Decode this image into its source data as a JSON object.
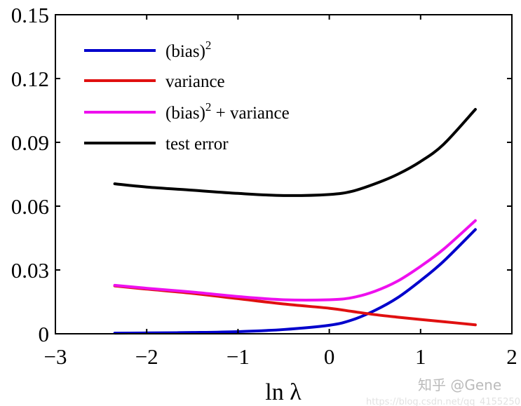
{
  "chart_data": {
    "type": "line",
    "title": "",
    "xlabel": "ln λ",
    "ylabel": "",
    "xlim": [
      -3,
      2
    ],
    "ylim": [
      0,
      0.15
    ],
    "xticks": [
      "−3",
      "−2",
      "−1",
      "0",
      "1",
      "2"
    ],
    "xtick_values": [
      -3,
      -2,
      -1,
      0,
      1,
      2
    ],
    "yticks": [
      "0",
      "0.03",
      "0.06",
      "0.09",
      "0.12",
      "0.15"
    ],
    "ytick_values": [
      0,
      0.03,
      0.06,
      0.09,
      0.12,
      0.15
    ],
    "grid": false,
    "legend_position": "top-left",
    "x": [
      -2.35,
      -2,
      -1.5,
      -1,
      -0.5,
      0,
      0.25,
      0.5,
      0.75,
      1,
      1.25,
      1.6
    ],
    "series": [
      {
        "name": "(bias)",
        "name_sup": "2",
        "color": "#0000cc",
        "values": [
          0.0003,
          0.0004,
          0.0006,
          0.001,
          0.002,
          0.004,
          0.0065,
          0.011,
          0.017,
          0.025,
          0.034,
          0.049
        ]
      },
      {
        "name": "variance",
        "name_sup": "",
        "color": "#e01010",
        "values": [
          0.0225,
          0.021,
          0.019,
          0.0165,
          0.014,
          0.012,
          0.0105,
          0.009,
          0.0078,
          0.0067,
          0.0057,
          0.0042
        ]
      },
      {
        "name": "(bias)",
        "name_sup": "2",
        "name_suffix": " + variance",
        "color": "#ee10ee",
        "values": [
          0.0228,
          0.0214,
          0.0196,
          0.0175,
          0.016,
          0.016,
          0.017,
          0.02,
          0.0248,
          0.0317,
          0.0397,
          0.0532
        ]
      },
      {
        "name": "test error",
        "name_sup": "",
        "color": "#000000",
        "values": [
          0.0705,
          0.069,
          0.0675,
          0.066,
          0.065,
          0.0655,
          0.067,
          0.0705,
          0.075,
          0.081,
          0.089,
          0.1055
        ]
      }
    ]
  },
  "watermark": {
    "brand": "知乎 @Gene",
    "url": "https://blog.csdn.net/qq_41552508"
  }
}
